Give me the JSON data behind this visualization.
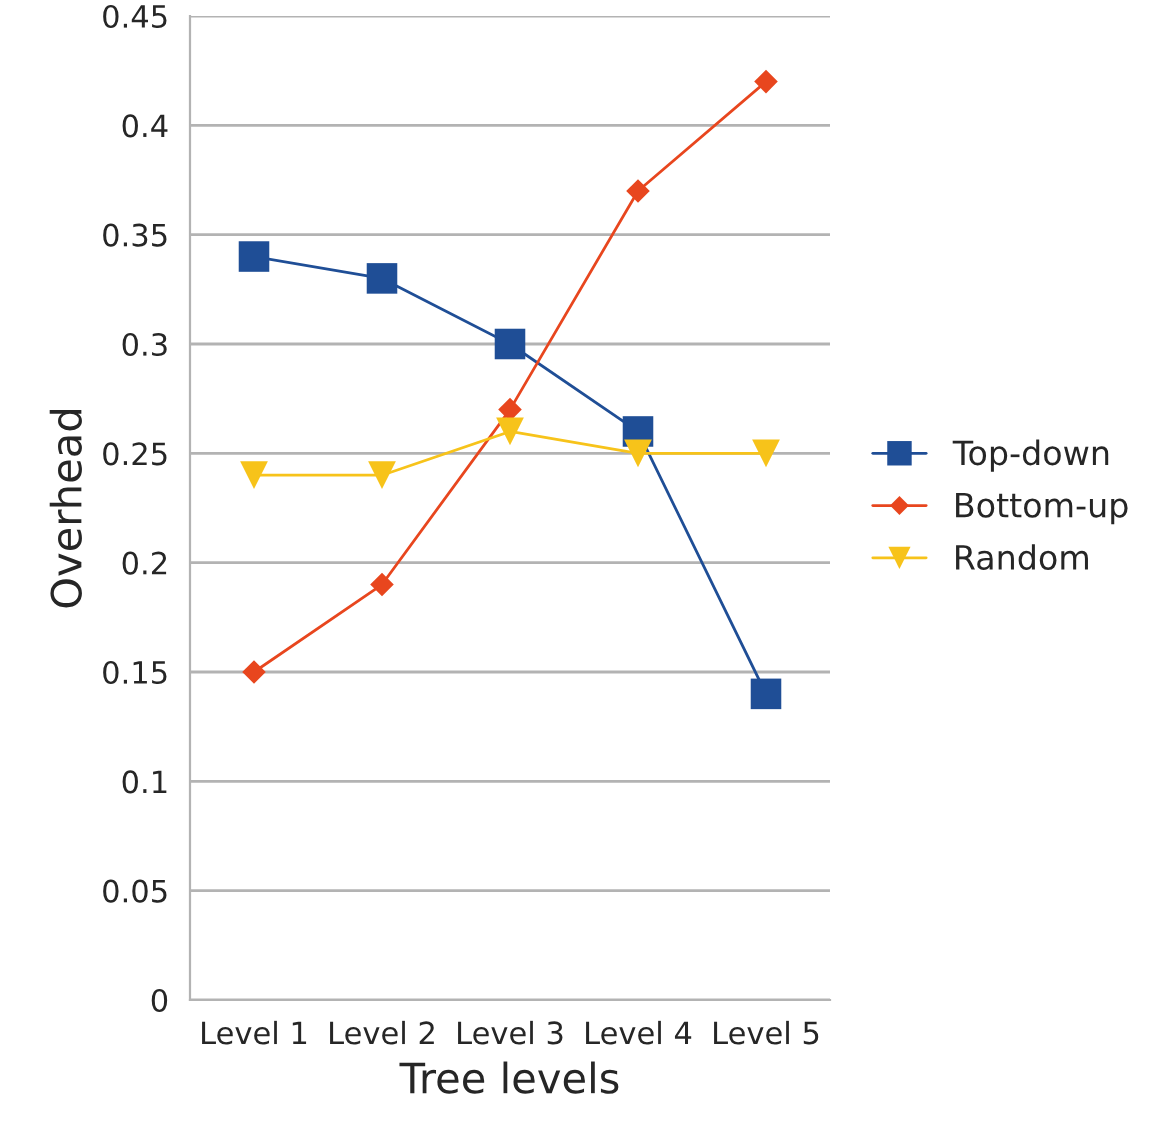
{
  "chart_data": {
    "type": "line",
    "xlabel": "Tree levels",
    "ylabel": "Overhead",
    "categories": [
      "Level 1",
      "Level 2",
      "Level 3",
      "Level 4",
      "Level 5"
    ],
    "series": [
      {
        "name": "Top-down",
        "color": "#1f4e96",
        "marker": "square",
        "values": [
          0.34,
          0.33,
          0.3,
          0.26,
          0.14
        ]
      },
      {
        "name": "Bottom-up",
        "color": "#e8461e",
        "marker": "diamond",
        "values": [
          0.15,
          0.19,
          0.27,
          0.37,
          0.42
        ]
      },
      {
        "name": "Random",
        "color": "#f7c31a",
        "marker": "triangle_down",
        "values": [
          0.24,
          0.24,
          0.26,
          0.25,
          0.25
        ]
      }
    ],
    "ylim": [
      0,
      0.45
    ],
    "yticks": [
      0,
      0.05,
      0.1,
      0.15,
      0.2,
      0.25,
      0.3,
      0.35,
      0.4,
      0.45
    ],
    "grid": "y",
    "legend": "right",
    "line_style": "solid"
  }
}
